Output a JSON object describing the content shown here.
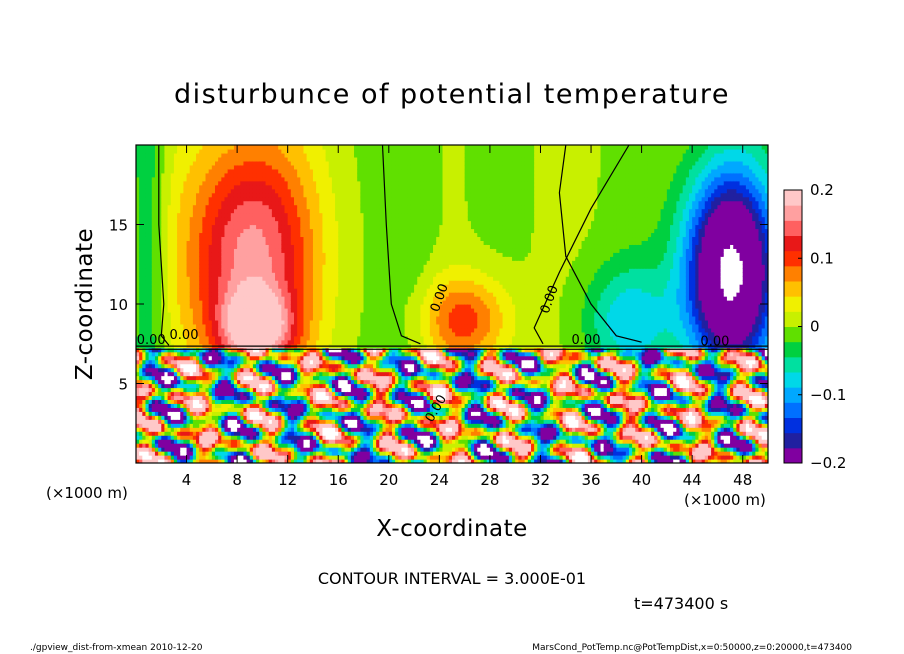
{
  "chart_data": {
    "type": "heatmap",
    "title": "disturbunce of potential temperature",
    "xlabel": "X-coordinate",
    "ylabel": "Z-coordinate",
    "x_unit": "(×1000 m)",
    "y_unit": "(×1000 m)",
    "xlim": [
      0,
      50
    ],
    "ylim": [
      0,
      20
    ],
    "x_ticks": [
      4,
      8,
      12,
      16,
      20,
      24,
      28,
      32,
      36,
      40,
      44,
      48
    ],
    "y_ticks": [
      5,
      10,
      15
    ],
    "colorbar": {
      "range": [
        -0.2,
        0.2
      ],
      "ticks": [
        -0.2,
        -0.1,
        0,
        0.1,
        0.2
      ],
      "tick_labels": [
        "−0.2",
        "−0.1",
        "0",
        "0.1",
        "0.2"
      ]
    },
    "contour_interval": "CONTOUR INTERVAL = 3.000E-01",
    "contour_labels": [
      "0.00",
      "0.00",
      "0.00",
      "0.00",
      "0.00",
      "0.00",
      "0.00"
    ],
    "time_label": "t=473400 s",
    "upper_layer_features": [
      {
        "kind": "warm",
        "x": 9,
        "z": 13,
        "sx": 3.5,
        "sz": 5.5,
        "amp": 0.17
      },
      {
        "kind": "warm",
        "x": 9.5,
        "z": 8.5,
        "sx": 2,
        "sz": 1.6,
        "amp": 0.14
      },
      {
        "kind": "warm",
        "x": 26,
        "z": 9,
        "sx": 2.5,
        "sz": 2,
        "amp": 0.1
      },
      {
        "kind": "cool",
        "x": 47,
        "z": 12,
        "sx": 2.5,
        "sz": 4.5,
        "amp": 0.3
      },
      {
        "kind": "cool",
        "x": 39,
        "z": 9,
        "sx": 2.5,
        "sz": 2.5,
        "amp": 0.08
      }
    ]
  },
  "footer": {
    "left": "./gpview_dist-from-xmean  2010-12-20",
    "right": "MarsCond_PotTemp.nc@PotTempDist,x=0:50000,z=0:20000,t=473400"
  }
}
